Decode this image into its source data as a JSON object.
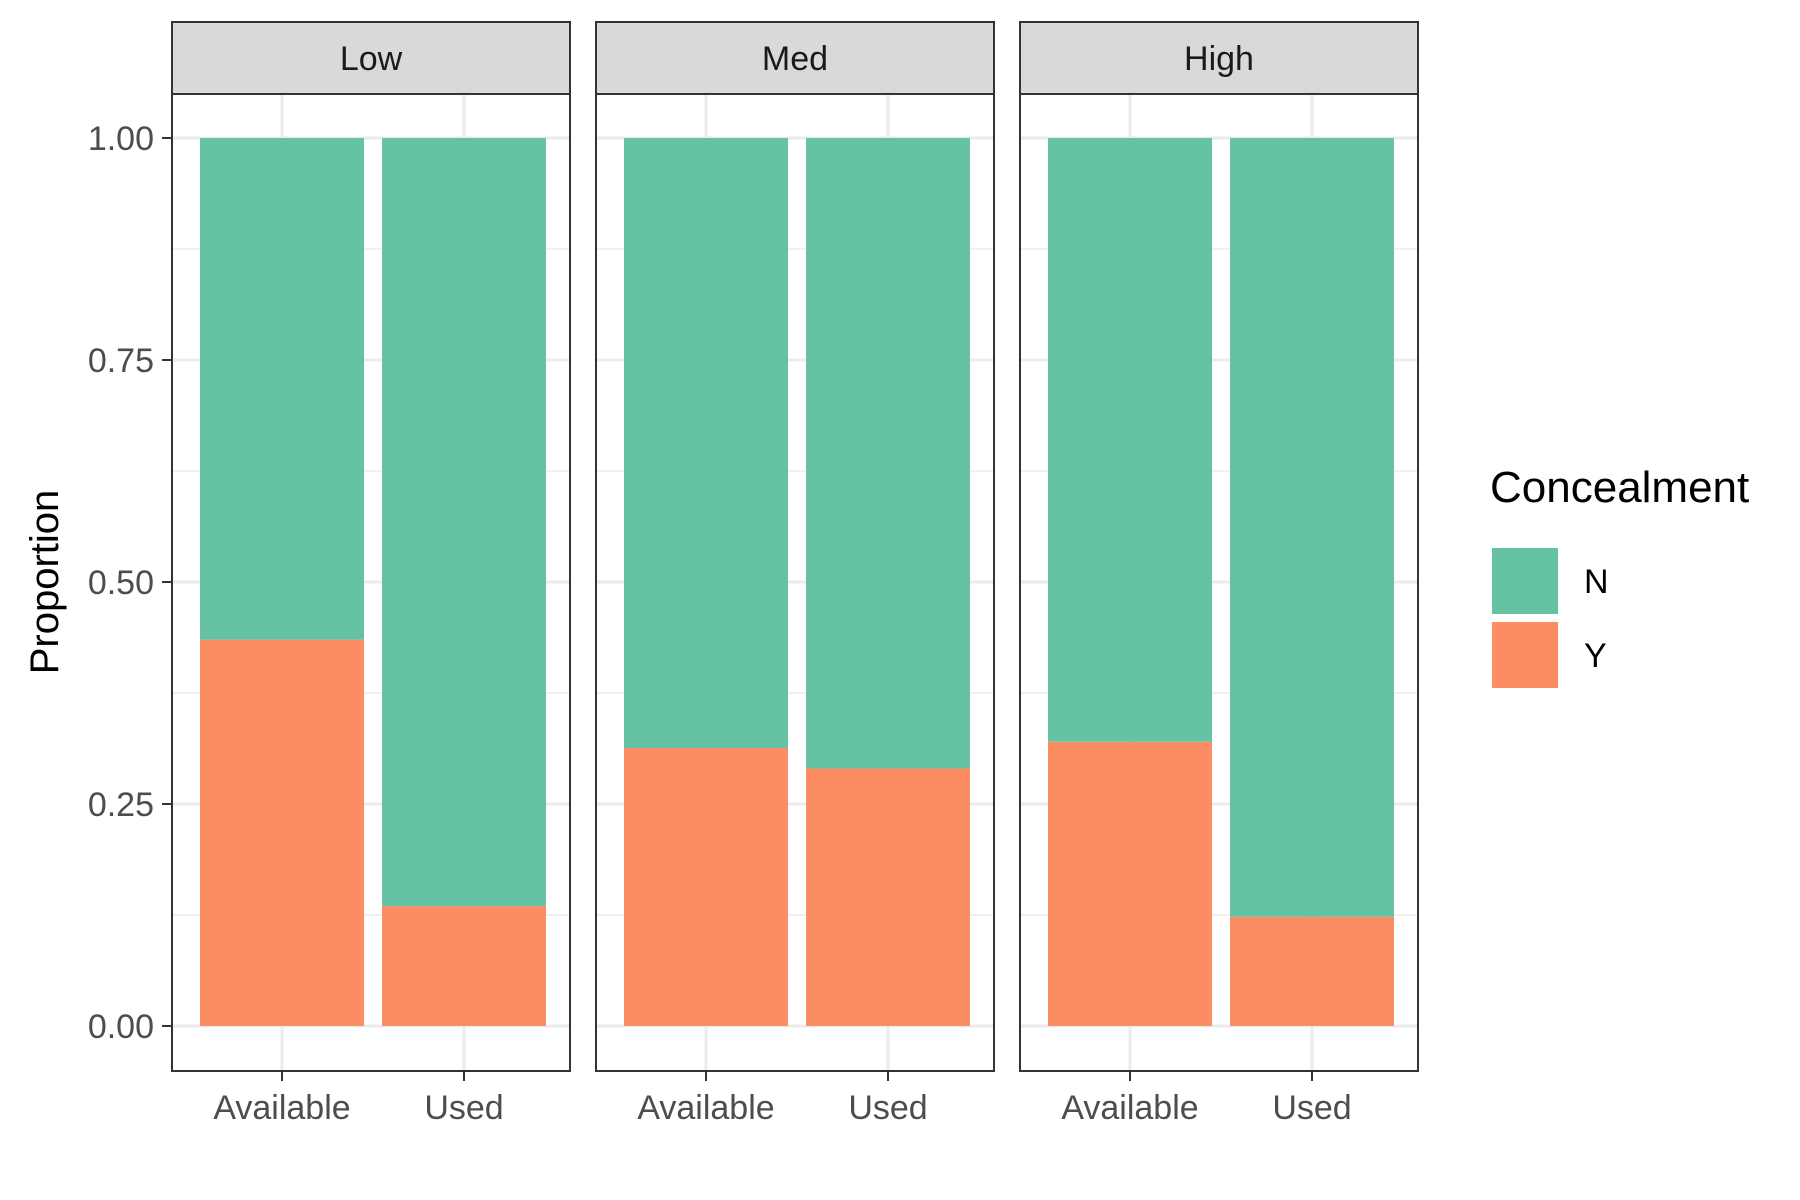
{
  "chart_data": {
    "type": "bar",
    "stacked": true,
    "ylabel": "Proportion",
    "xlabel": "",
    "ylim": [
      0,
      1
    ],
    "y_ticks": [
      "0.00",
      "0.25",
      "0.50",
      "0.75",
      "1.00"
    ],
    "categories": [
      "Available",
      "Used"
    ],
    "legend": {
      "title": "Concealment",
      "position": "right",
      "entries": [
        {
          "label": "N",
          "color": "#66c2a5"
        },
        {
          "label": "Y",
          "color": "#fc8d62"
        }
      ]
    },
    "grid": true,
    "panels": [
      {
        "label": "Low",
        "series": [
          {
            "name": "Y",
            "values": [
              0.435,
              0.135
            ]
          },
          {
            "name": "N",
            "values": [
              0.565,
              0.865
            ]
          }
        ]
      },
      {
        "label": "Med",
        "series": [
          {
            "name": "Y",
            "values": [
              0.313,
              0.29
            ]
          },
          {
            "name": "N",
            "values": [
              0.687,
              0.71
            ]
          }
        ]
      },
      {
        "label": "High",
        "series": [
          {
            "name": "Y",
            "values": [
              0.32,
              0.123
            ]
          },
          {
            "name": "N",
            "values": [
              0.68,
              0.877
            ]
          }
        ]
      }
    ]
  },
  "colors": {
    "N": "#66c2a5",
    "Y": "#fc8d62",
    "strip_fill": "#d9d9d9",
    "grid": "#ebebeb",
    "border": "#333333"
  }
}
